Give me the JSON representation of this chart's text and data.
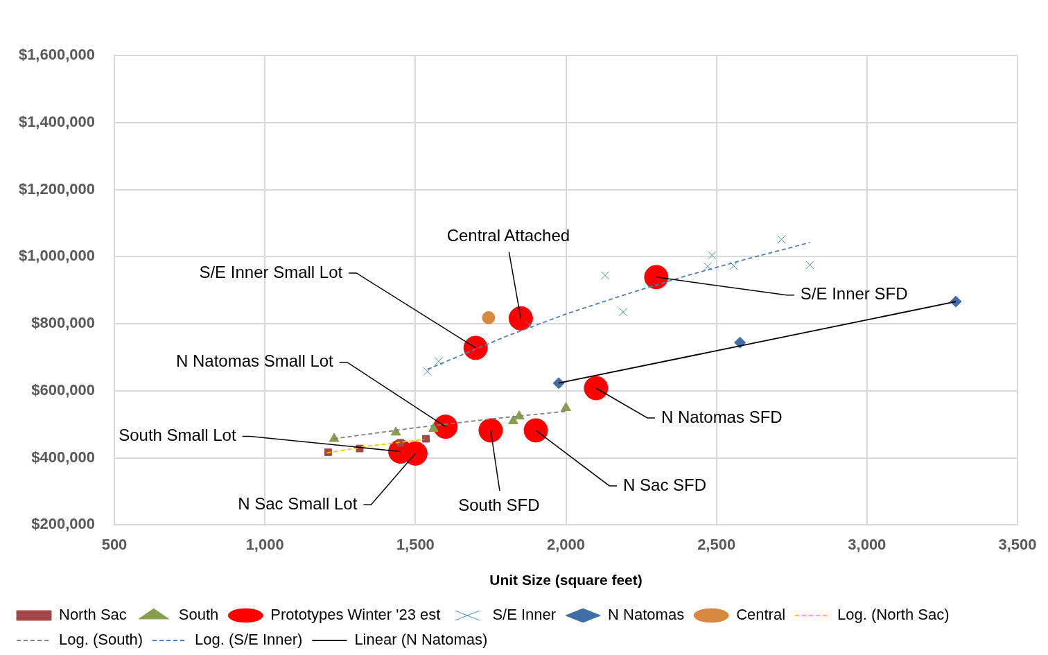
{
  "chart_data": {
    "type": "scatter",
    "xlabel": "Unit Size (square feet)",
    "xlim": [
      500,
      3500
    ],
    "xticks": [
      {
        "value": 500,
        "label": "500"
      },
      {
        "value": 1000,
        "label": "1,000"
      },
      {
        "value": 1500,
        "label": "1,500"
      },
      {
        "value": 2000,
        "label": "2,000"
      },
      {
        "value": 2500,
        "label": "2,500"
      },
      {
        "value": 3000,
        "label": "3,000"
      },
      {
        "value": 3500,
        "label": "3,500"
      }
    ],
    "ylim": [
      200000,
      1600000
    ],
    "yticks": [
      {
        "value": 200000,
        "label": "$200,000"
      },
      {
        "value": 400000,
        "label": "$400,000"
      },
      {
        "value": 600000,
        "label": "$600,000"
      },
      {
        "value": 800000,
        "label": "$800,000"
      },
      {
        "value": 1000000,
        "label": "$1,000,000"
      },
      {
        "value": 1200000,
        "label": "$1,200,000"
      },
      {
        "value": 1400000,
        "label": "$1,400,000"
      },
      {
        "value": 1600000,
        "label": "$1,600,000"
      }
    ],
    "grid": true,
    "legend": "bottom",
    "series": [
      {
        "name": "North Sac",
        "type": "scatter",
        "marker": "square",
        "color": "#a0484a",
        "x": [
          1210,
          1315,
          1450,
          1535
        ],
        "values": [
          417000,
          428000,
          445000,
          457000
        ]
      },
      {
        "name": "South",
        "type": "scatter",
        "marker": "triangle",
        "color": "#84a04e",
        "x": [
          1230,
          1435,
          1560,
          1825,
          1845,
          2000
        ],
        "values": [
          457000,
          476000,
          487000,
          510000,
          524000,
          549000
        ]
      },
      {
        "name": "Prototypes Winter '23 est",
        "type": "scatter",
        "marker": "circle",
        "color": "#ff0000",
        "x": [
          1700,
          1850,
          2300,
          1600,
          1450,
          1500,
          1750,
          1900,
          2100
        ],
        "values": [
          728000,
          816000,
          939000,
          493000,
          419000,
          413000,
          482000,
          482000,
          608000
        ]
      },
      {
        "name": "S/E Inner",
        "type": "scatter",
        "marker": "cross",
        "color": "#3c96b0",
        "x": [
          1540,
          1577,
          1879,
          2130,
          2190,
          2471,
          2485,
          2557,
          2716,
          2810
        ],
        "values": [
          658000,
          688000,
          797000,
          944000,
          835000,
          971000,
          1004000,
          973000,
          1051000,
          975000
        ]
      },
      {
        "name": "N Natomas",
        "type": "scatter",
        "marker": "diamond",
        "color": "#3f6ea8",
        "x": [
          1976,
          2578,
          3295
        ],
        "values": [
          623000,
          744000,
          866000
        ]
      },
      {
        "name": "Central",
        "type": "scatter",
        "marker": "circle",
        "color": "#d9883f",
        "x": [
          1743
        ],
        "values": [
          818000
        ]
      },
      {
        "name": "Log. (North Sac)",
        "type": "line",
        "marker": "none",
        "line_style": "dashed",
        "color": "#ffc000",
        "x": [
          1206,
          1350,
          1528
        ],
        "values": [
          415000,
          436000,
          455000
        ]
      },
      {
        "name": "Log. (South)",
        "type": "line",
        "marker": "none",
        "line_style": "dashed",
        "color": "#7f7f7f",
        "x": [
          1229,
          1500,
          1750,
          2000
        ],
        "values": [
          457000,
          490000,
          516000,
          539000
        ]
      },
      {
        "name": "Log. (S/E Inner)",
        "type": "line",
        "marker": "none",
        "line_style": "dashed",
        "color": "#4a7ebb",
        "x": [
          1540,
          1800,
          2000,
          2200,
          2400,
          2600,
          2810
        ],
        "values": [
          664000,
          762000,
          829000,
          888000,
          943000,
          993000,
          1042000
        ]
      },
      {
        "name": "Linear (N Natomas)",
        "type": "line",
        "marker": "none",
        "line_style": "solid",
        "color": "#000000",
        "x": [
          1976,
          3295
        ],
        "values": [
          623000,
          866000
        ]
      }
    ],
    "annotations": [
      {
        "text": "S/E Inner Small Lot",
        "x": 1700,
        "y": 728000
      },
      {
        "text": "Central Attached",
        "x": 1850,
        "y": 816000
      },
      {
        "text": "S/E Inner SFD",
        "x": 2300,
        "y": 939000
      },
      {
        "text": "N Natomas Small Lot",
        "x": 1600,
        "y": 493000
      },
      {
        "text": "South Small Lot",
        "x": 1450,
        "y": 419000
      },
      {
        "text": "N Sac Small Lot",
        "x": 1500,
        "y": 413000
      },
      {
        "text": "South SFD",
        "x": 1750,
        "y": 482000
      },
      {
        "text": "N Sac SFD",
        "x": 1900,
        "y": 482000
      },
      {
        "text": "N Natomas SFD",
        "x": 2100,
        "y": 608000
      }
    ]
  }
}
